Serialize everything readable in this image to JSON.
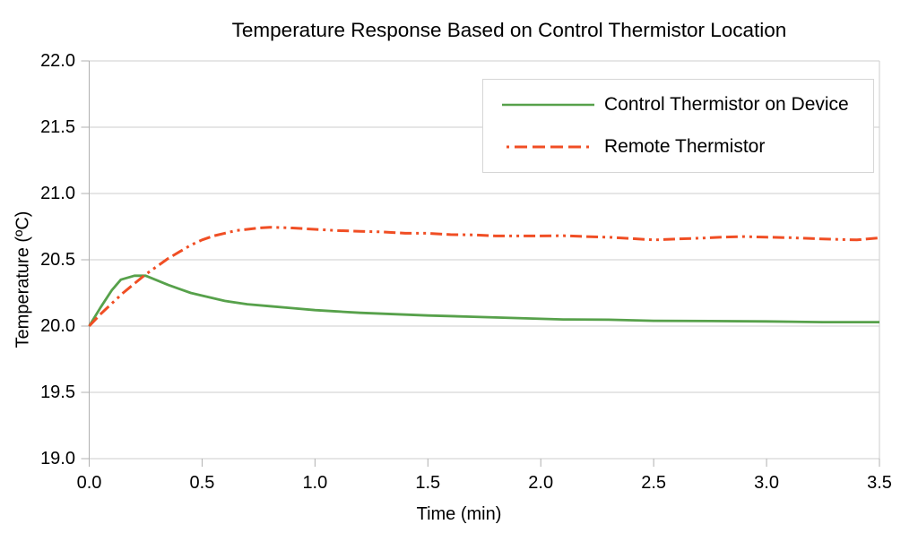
{
  "page": {
    "background": "#ffffff"
  },
  "chart_data": {
    "type": "line",
    "title": "Temperature Response Based on Control Thermistor Location",
    "xlabel": "Time (min)",
    "ylabel": "Temperature (ºC)",
    "xlim": [
      0.0,
      3.5
    ],
    "ylim": [
      19.0,
      22.0
    ],
    "xticks": [
      "0.0",
      "0.5",
      "1.0",
      "1.5",
      "2.0",
      "2.5",
      "3.0",
      "3.5"
    ],
    "yticks": [
      "19.0",
      "19.5",
      "20.0",
      "20.5",
      "21.0",
      "21.5",
      "22.0"
    ],
    "grid": "horizontal-only",
    "legend_position": "top-right-inside",
    "grid_color": "#cdcdcd",
    "axis_color": "#b0b0b0",
    "series": [
      {
        "name": "Control Thermistor on Device",
        "color": "#57a14b",
        "line_style": "solid",
        "points": [
          [
            0.0,
            20.0
          ],
          [
            0.05,
            20.14
          ],
          [
            0.1,
            20.27
          ],
          [
            0.14,
            20.35
          ],
          [
            0.2,
            20.38
          ],
          [
            0.25,
            20.38
          ],
          [
            0.3,
            20.345
          ],
          [
            0.35,
            20.31
          ],
          [
            0.4,
            20.28
          ],
          [
            0.45,
            20.25
          ],
          [
            0.5,
            20.23
          ],
          [
            0.6,
            20.19
          ],
          [
            0.7,
            20.165
          ],
          [
            0.8,
            20.15
          ],
          [
            0.9,
            20.135
          ],
          [
            1.0,
            20.12
          ],
          [
            1.1,
            20.11
          ],
          [
            1.2,
            20.1
          ],
          [
            1.35,
            20.09
          ],
          [
            1.5,
            20.08
          ],
          [
            1.7,
            20.07
          ],
          [
            1.9,
            20.06
          ],
          [
            2.1,
            20.05
          ],
          [
            2.3,
            20.048
          ],
          [
            2.5,
            20.04
          ],
          [
            2.75,
            20.038
          ],
          [
            3.0,
            20.035
          ],
          [
            3.25,
            20.03
          ],
          [
            3.5,
            20.03
          ]
        ]
      },
      {
        "name": "Remote Thermistor",
        "color": "#f04e24",
        "line_style": "dash-dash-dot-dot",
        "points": [
          [
            0.0,
            20.0
          ],
          [
            0.05,
            20.09
          ],
          [
            0.1,
            20.17
          ],
          [
            0.15,
            20.25
          ],
          [
            0.2,
            20.32
          ],
          [
            0.25,
            20.39
          ],
          [
            0.3,
            20.45
          ],
          [
            0.35,
            20.51
          ],
          [
            0.4,
            20.56
          ],
          [
            0.45,
            20.61
          ],
          [
            0.5,
            20.65
          ],
          [
            0.55,
            20.68
          ],
          [
            0.6,
            20.7
          ],
          [
            0.65,
            20.72
          ],
          [
            0.7,
            20.73
          ],
          [
            0.75,
            20.74
          ],
          [
            0.8,
            20.745
          ],
          [
            0.9,
            20.74
          ],
          [
            1.0,
            20.73
          ],
          [
            1.1,
            20.72
          ],
          [
            1.2,
            20.715
          ],
          [
            1.3,
            20.71
          ],
          [
            1.4,
            20.7
          ],
          [
            1.5,
            20.7
          ],
          [
            1.6,
            20.69
          ],
          [
            1.7,
            20.688
          ],
          [
            1.8,
            20.68
          ],
          [
            1.9,
            20.68
          ],
          [
            2.0,
            20.68
          ],
          [
            2.1,
            20.682
          ],
          [
            2.2,
            20.675
          ],
          [
            2.3,
            20.67
          ],
          [
            2.4,
            20.66
          ],
          [
            2.5,
            20.65
          ],
          [
            2.6,
            20.657
          ],
          [
            2.7,
            20.663
          ],
          [
            2.8,
            20.67
          ],
          [
            2.9,
            20.675
          ],
          [
            3.0,
            20.67
          ],
          [
            3.1,
            20.667
          ],
          [
            3.2,
            20.66
          ],
          [
            3.3,
            20.655
          ],
          [
            3.4,
            20.65
          ],
          [
            3.5,
            20.665
          ]
        ]
      }
    ]
  }
}
